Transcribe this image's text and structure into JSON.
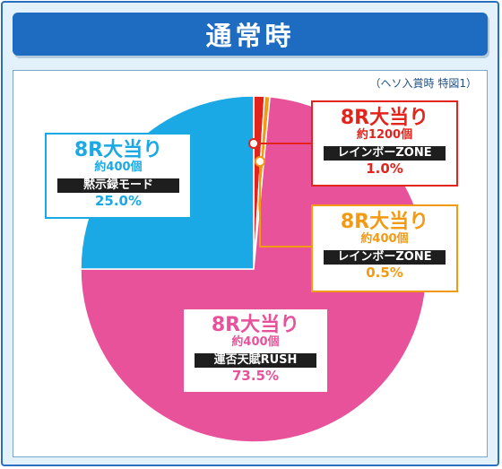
{
  "header": {
    "title": "通常時"
  },
  "note": "（ヘソ入賞時 特図1）",
  "colors": {
    "pink": "#e8529b",
    "blue": "#1ba9e6",
    "red": "#e2241d",
    "orange": "#f29a14"
  },
  "chart_data": {
    "type": "pie",
    "slices": [
      {
        "title": "8R大当り",
        "count": "約1200個",
        "tag": "レインボーZONE",
        "pct_label": "1.0%",
        "value": 1.0,
        "color": "#e2241d"
      },
      {
        "title": "8R大当り",
        "count": "約400個",
        "tag": "レインボーZONE",
        "pct_label": "0.5%",
        "value": 0.5,
        "color": "#f29a14"
      },
      {
        "title": "8R大当り",
        "count": "約400個",
        "tag": "運否天賦RUSH",
        "pct_label": "73.5%",
        "value": 73.5,
        "color": "#e8529b"
      },
      {
        "title": "8R大当り",
        "count": "約400個",
        "tag": "黙示録モード",
        "pct_label": "25.0%",
        "value": 25.0,
        "color": "#1ba9e6"
      }
    ]
  }
}
